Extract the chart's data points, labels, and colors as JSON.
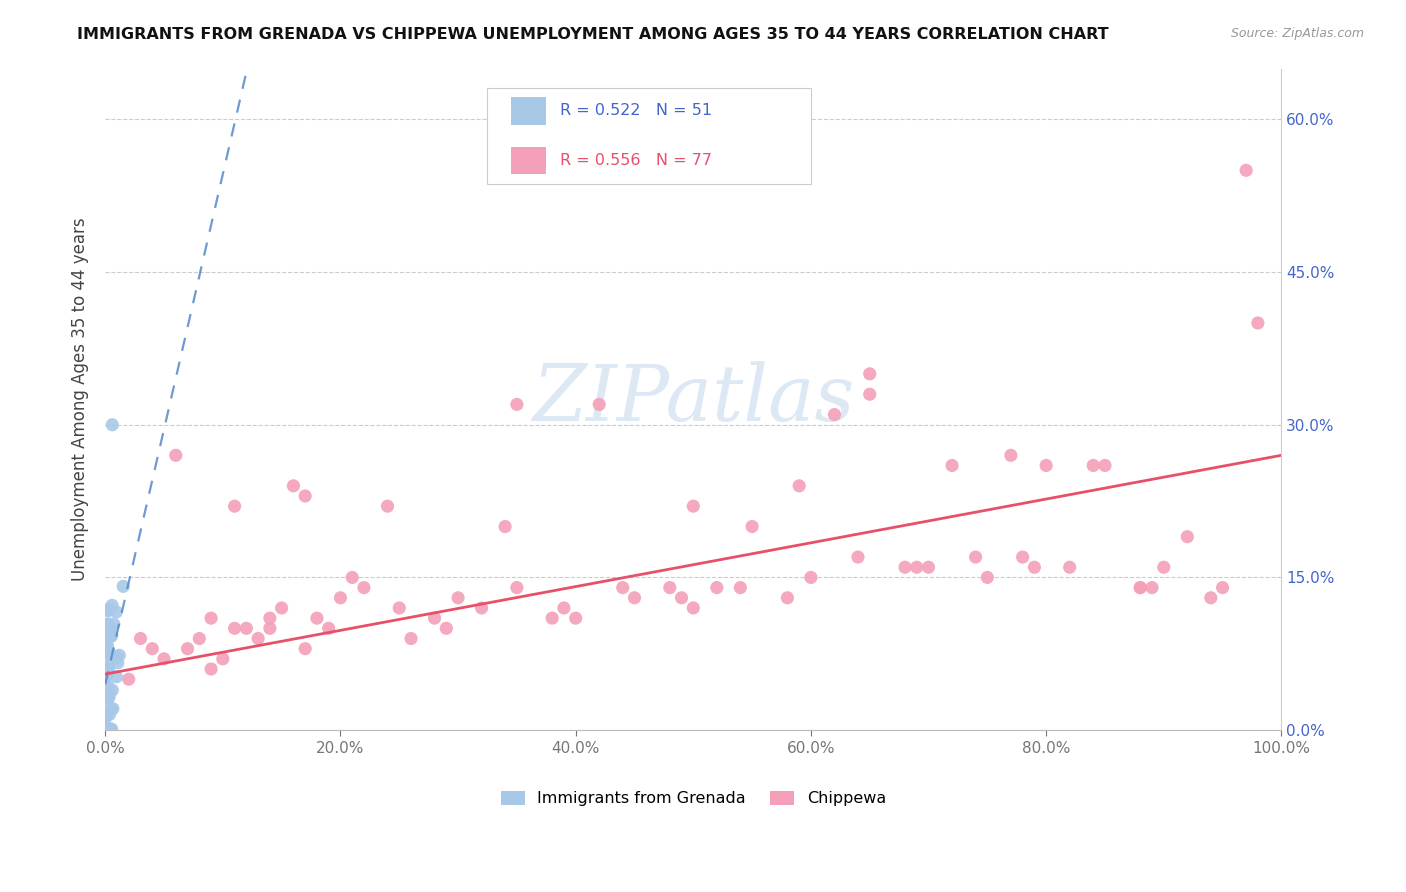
{
  "title": "IMMIGRANTS FROM GRENADA VS CHIPPEWA UNEMPLOYMENT AMONG AGES 35 TO 44 YEARS CORRELATION CHART",
  "source": "Source: ZipAtlas.com",
  "ylabel": "Unemployment Among Ages 35 to 44 years",
  "xlim": [
    0.0,
    1.0
  ],
  "ylim": [
    0.0,
    0.65
  ],
  "yticks": [
    0.0,
    0.15,
    0.3,
    0.45,
    0.6
  ],
  "ytick_labels": [
    "0.0%",
    "15.0%",
    "30.0%",
    "45.0%",
    "60.0%"
  ],
  "xticks": [
    0.0,
    0.2,
    0.4,
    0.6,
    0.8,
    1.0
  ],
  "xtick_labels": [
    "0.0%",
    "20.0%",
    "40.0%",
    "60.0%",
    "80.0%",
    "100.0%"
  ],
  "grenada_R": 0.522,
  "grenada_N": 51,
  "chippewa_R": 0.556,
  "chippewa_N": 77,
  "grenada_color": "#a8c8e8",
  "chippewa_color": "#f4a0b8",
  "grenada_line_color": "#5588cc",
  "chippewa_line_color": "#e8506a",
  "right_tick_color": "#4466cc",
  "watermark": "ZIPatlas",
  "watermark_color": "#dde8f5",
  "title_fontsize": 11.5,
  "tick_fontsize": 11,
  "ylabel_fontsize": 12,
  "chippewa_x": [
    0.02,
    0.04,
    0.06,
    0.08,
    0.09,
    0.1,
    0.11,
    0.12,
    0.13,
    0.14,
    0.15,
    0.16,
    0.17,
    0.18,
    0.19,
    0.2,
    0.22,
    0.24,
    0.26,
    0.28,
    0.3,
    0.32,
    0.35,
    0.38,
    0.4,
    0.42,
    0.45,
    0.48,
    0.5,
    0.52,
    0.55,
    0.58,
    0.6,
    0.62,
    0.65,
    0.68,
    0.7,
    0.72,
    0.75,
    0.78,
    0.8,
    0.82,
    0.85,
    0.88,
    0.9,
    0.92,
    0.95,
    0.97,
    0.03,
    0.05,
    0.07,
    0.09,
    0.11,
    0.14,
    0.17,
    0.21,
    0.25,
    0.29,
    0.34,
    0.39,
    0.44,
    0.49,
    0.54,
    0.59,
    0.64,
    0.69,
    0.74,
    0.79,
    0.84,
    0.89,
    0.94,
    0.98,
    0.5,
    0.35,
    0.65,
    0.77,
    0.88
  ],
  "chippewa_y": [
    0.05,
    0.08,
    0.27,
    0.09,
    0.06,
    0.07,
    0.22,
    0.1,
    0.09,
    0.11,
    0.12,
    0.24,
    0.08,
    0.11,
    0.1,
    0.13,
    0.14,
    0.22,
    0.09,
    0.11,
    0.13,
    0.12,
    0.14,
    0.11,
    0.11,
    0.32,
    0.13,
    0.14,
    0.12,
    0.14,
    0.2,
    0.13,
    0.15,
    0.31,
    0.33,
    0.16,
    0.16,
    0.26,
    0.15,
    0.17,
    0.26,
    0.16,
    0.26,
    0.14,
    0.16,
    0.19,
    0.14,
    0.55,
    0.09,
    0.07,
    0.08,
    0.11,
    0.1,
    0.1,
    0.23,
    0.15,
    0.12,
    0.1,
    0.2,
    0.12,
    0.14,
    0.13,
    0.14,
    0.24,
    0.17,
    0.16,
    0.17,
    0.16,
    0.26,
    0.14,
    0.13,
    0.4,
    0.22,
    0.32,
    0.35,
    0.27,
    0.14
  ]
}
